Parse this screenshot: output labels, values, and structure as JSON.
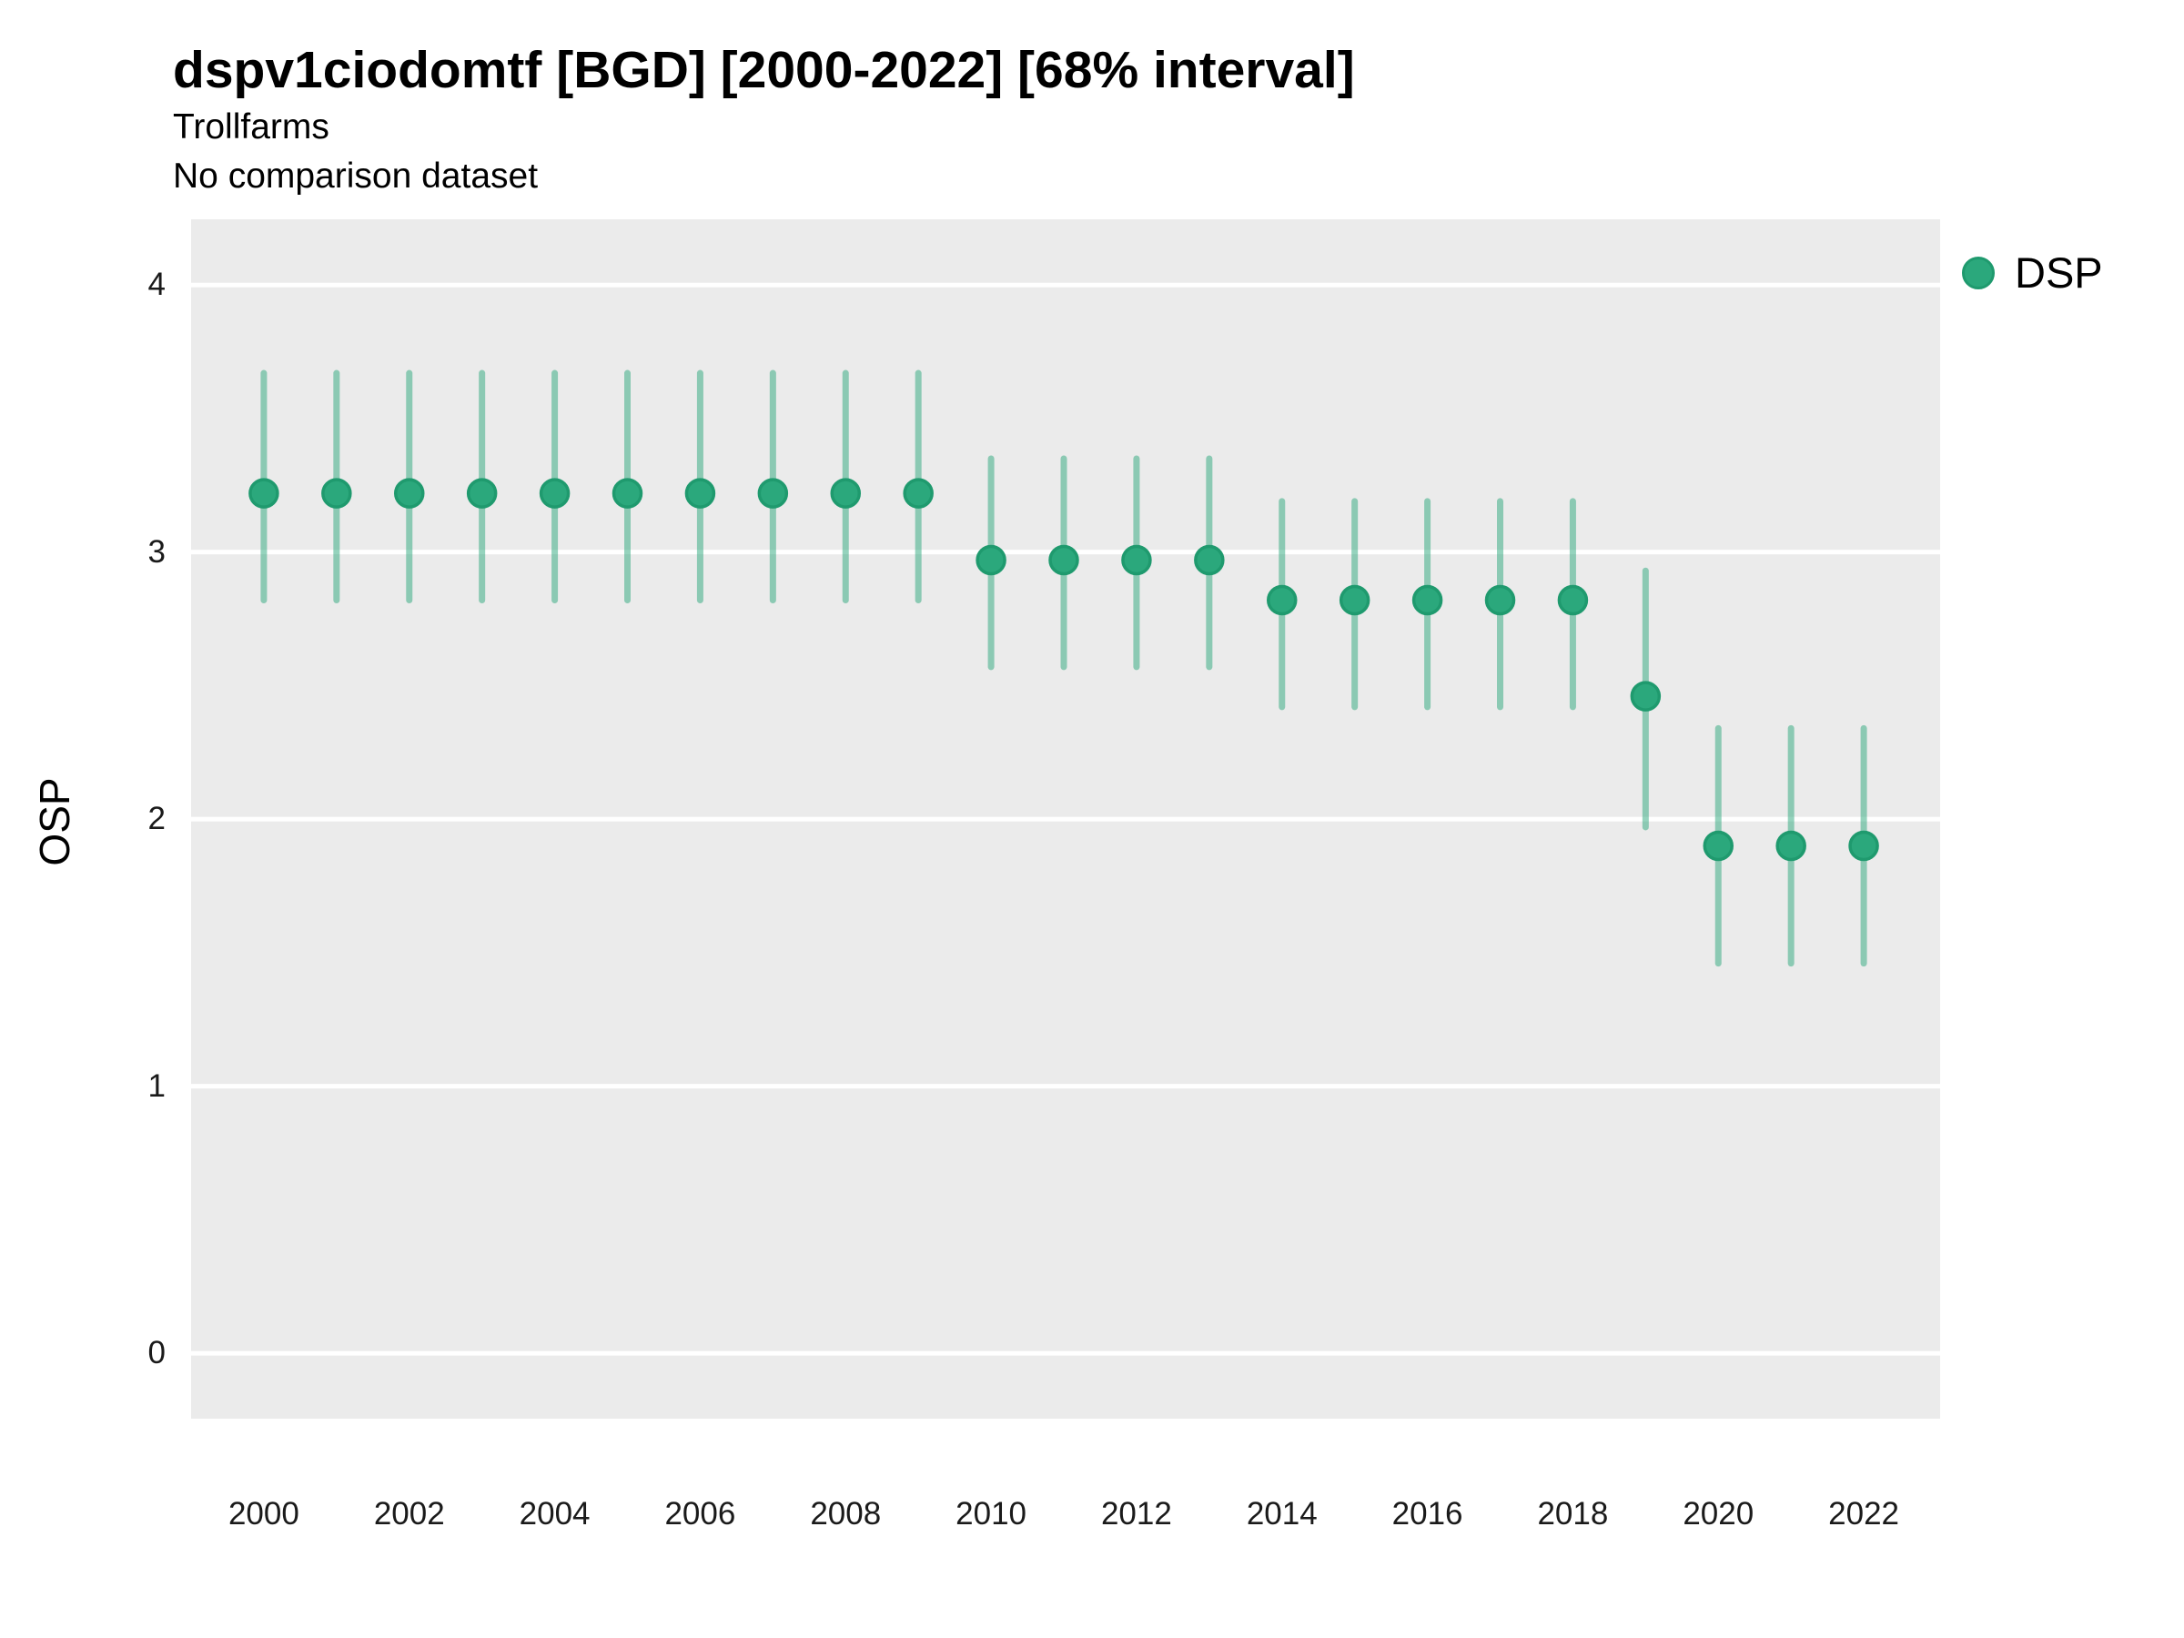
{
  "header": {
    "title": "dspv1ciodomtf [BGD] [2000-2022] [68% interval]",
    "subtitle": "Trollfarms",
    "comparison_note": "No comparison dataset"
  },
  "axes": {
    "y_title": "OSP"
  },
  "legend": {
    "items": [
      {
        "label": "DSP",
        "marker": "circle-icon",
        "color": "#2BA87C"
      }
    ],
    "position": "right-top"
  },
  "colors": {
    "point_fill": "#2BA87C",
    "point_stroke": "#1F9A6E",
    "interval_line": "#2BA87C",
    "interval_opacity": 0.5,
    "panel_background": "#EBEBEB",
    "gridline": "#FFFFFF",
    "text": "#1a1a1a",
    "page_background": "#FFFFFF"
  },
  "chart_data": {
    "type": "scatter",
    "subtype": "point-with-interval",
    "interval_label": "68% interval",
    "title": "dspv1ciodomtf [BGD] [2000-2022] [68% interval]",
    "subtitle": "Trollfarms",
    "note": "No comparison dataset",
    "xlabel": "",
    "ylabel": "OSP",
    "legend_position": "right-top",
    "grid": "major-horizontal-only",
    "x_ticks": [
      2000,
      2002,
      2004,
      2006,
      2008,
      2010,
      2012,
      2014,
      2016,
      2018,
      2020,
      2022
    ],
    "y_ticks": [
      0,
      1,
      2,
      3,
      4
    ],
    "xlim": [
      1999.0,
      2023.05
    ],
    "ylim": [
      -0.245,
      4.246
    ],
    "series": [
      {
        "name": "DSP",
        "color": "#2BA87C",
        "points": [
          {
            "year": 2000,
            "value": 3.22,
            "lo": 2.82,
            "hi": 3.67
          },
          {
            "year": 2001,
            "value": 3.22,
            "lo": 2.82,
            "hi": 3.67
          },
          {
            "year": 2002,
            "value": 3.22,
            "lo": 2.82,
            "hi": 3.67
          },
          {
            "year": 2003,
            "value": 3.22,
            "lo": 2.82,
            "hi": 3.67
          },
          {
            "year": 2004,
            "value": 3.22,
            "lo": 2.82,
            "hi": 3.67
          },
          {
            "year": 2005,
            "value": 3.22,
            "lo": 2.82,
            "hi": 3.67
          },
          {
            "year": 2006,
            "value": 3.22,
            "lo": 2.82,
            "hi": 3.67
          },
          {
            "year": 2007,
            "value": 3.22,
            "lo": 2.82,
            "hi": 3.67
          },
          {
            "year": 2008,
            "value": 3.22,
            "lo": 2.82,
            "hi": 3.67
          },
          {
            "year": 2009,
            "value": 3.22,
            "lo": 2.82,
            "hi": 3.67
          },
          {
            "year": 2010,
            "value": 2.97,
            "lo": 2.57,
            "hi": 3.35
          },
          {
            "year": 2011,
            "value": 2.97,
            "lo": 2.57,
            "hi": 3.35
          },
          {
            "year": 2012,
            "value": 2.97,
            "lo": 2.57,
            "hi": 3.35
          },
          {
            "year": 2013,
            "value": 2.97,
            "lo": 2.57,
            "hi": 3.35
          },
          {
            "year": 2014,
            "value": 2.82,
            "lo": 2.42,
            "hi": 3.19
          },
          {
            "year": 2015,
            "value": 2.82,
            "lo": 2.42,
            "hi": 3.19
          },
          {
            "year": 2016,
            "value": 2.82,
            "lo": 2.42,
            "hi": 3.19
          },
          {
            "year": 2017,
            "value": 2.82,
            "lo": 2.42,
            "hi": 3.19
          },
          {
            "year": 2018,
            "value": 2.82,
            "lo": 2.42,
            "hi": 3.19
          },
          {
            "year": 2019,
            "value": 2.46,
            "lo": 1.97,
            "hi": 2.93
          },
          {
            "year": 2020,
            "value": 1.9,
            "lo": 1.46,
            "hi": 2.34
          },
          {
            "year": 2021,
            "value": 1.9,
            "lo": 1.46,
            "hi": 2.34
          },
          {
            "year": 2022,
            "value": 1.9,
            "lo": 1.46,
            "hi": 2.34
          }
        ]
      }
    ]
  }
}
